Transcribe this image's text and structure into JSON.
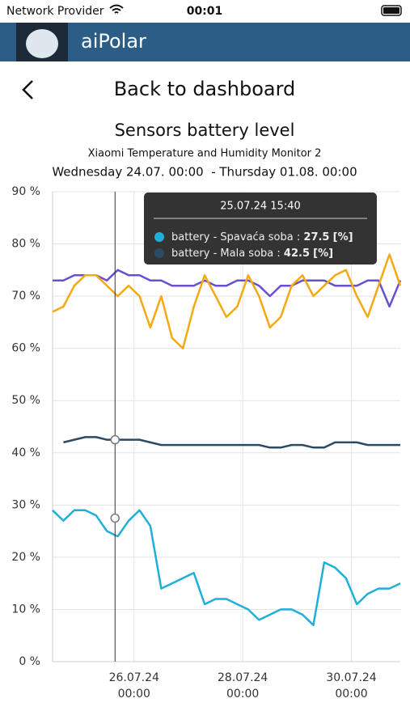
{
  "status_bar": {
    "carrier": "Network Provider",
    "time": "00:01"
  },
  "app_bar": {
    "title": "aiPolar"
  },
  "nav": {
    "back_label": "Back to dashboard"
  },
  "chart_data": {
    "type": "line",
    "title": "Sensors battery level",
    "subtitle": "Xiaomi Temperature and Humidity Monitor 2",
    "date_range": "Wednesday 24.07. 00:00  - Thursday 01.08. 00:00",
    "x": [
      24.5,
      24.7,
      24.9,
      25.1,
      25.3,
      25.5,
      25.7,
      25.9,
      26.1,
      26.3,
      26.5,
      26.7,
      26.9,
      27.1,
      27.3,
      27.5,
      27.7,
      27.9,
      28.1,
      28.3,
      28.5,
      28.7,
      28.9,
      29.1,
      29.3,
      29.5,
      29.7,
      29.9,
      30.1,
      30.3,
      30.5,
      30.7,
      30.9
    ],
    "xlim": [
      24.5,
      30.9
    ],
    "xticks": [
      {
        "value": 26,
        "label": "26.07.24\n00:00"
      },
      {
        "value": 28,
        "label": "28.07.24\n00:00"
      },
      {
        "value": 30,
        "label": "30.07.24\n00:00"
      }
    ],
    "ylim": [
      0,
      90
    ],
    "yticks": [
      {
        "value": 0,
        "label": "0 %"
      },
      {
        "value": 10,
        "label": "10 %"
      },
      {
        "value": 20,
        "label": "20 %"
      },
      {
        "value": 30,
        "label": "30 %"
      },
      {
        "value": 40,
        "label": "40 %"
      },
      {
        "value": 50,
        "label": "50 %"
      },
      {
        "value": 60,
        "label": "60 %"
      },
      {
        "value": 70,
        "label": "70 %"
      },
      {
        "value": 80,
        "label": "80 %"
      },
      {
        "value": 90,
        "label": "90 %"
      }
    ],
    "grid": true,
    "series": [
      {
        "name": "battery - Spavaća soba",
        "color": "#1fb0da",
        "values": [
          29,
          27,
          29,
          29,
          28,
          25,
          24,
          27,
          29,
          26,
          14,
          15,
          16,
          17,
          11,
          12,
          12,
          11,
          10,
          8,
          9,
          10,
          10,
          9,
          7,
          19,
          18,
          16,
          11,
          13,
          14,
          14,
          15
        ]
      },
      {
        "name": "battery - Mala soba",
        "color": "#2c4b63",
        "values": [
          null,
          42,
          42.5,
          43,
          43,
          42.5,
          42.5,
          42.5,
          42.5,
          42,
          41.5,
          41.5,
          41.5,
          41.5,
          41.5,
          41.5,
          41.5,
          41.5,
          41.5,
          41.5,
          41,
          41,
          41.5,
          41.5,
          41,
          41,
          42,
          42,
          42,
          41.5,
          41.5,
          41.5,
          41.5
        ]
      },
      {
        "color": "#6a4fd2",
        "values": [
          73,
          73,
          74,
          74,
          74,
          73,
          75,
          74,
          74,
          73,
          73,
          72,
          72,
          72,
          73,
          72,
          72,
          73,
          73,
          72,
          70,
          72,
          72,
          73,
          73,
          73,
          72,
          72,
          72,
          73,
          73,
          68,
          73
        ]
      },
      {
        "color": "#f5a912",
        "values": [
          67,
          68,
          72,
          74,
          74,
          72,
          70,
          72,
          70,
          64,
          70,
          62,
          60,
          68,
          74,
          70,
          66,
          68,
          74,
          70,
          64,
          66,
          72,
          74,
          70,
          72,
          74,
          75,
          70,
          66,
          72,
          78,
          72
        ]
      }
    ],
    "tooltip": {
      "title": "25.07.24 15:40",
      "x": 25.65,
      "separator": ":",
      "unit": "[%]",
      "values": [
        27.5,
        42.5
      ]
    }
  }
}
